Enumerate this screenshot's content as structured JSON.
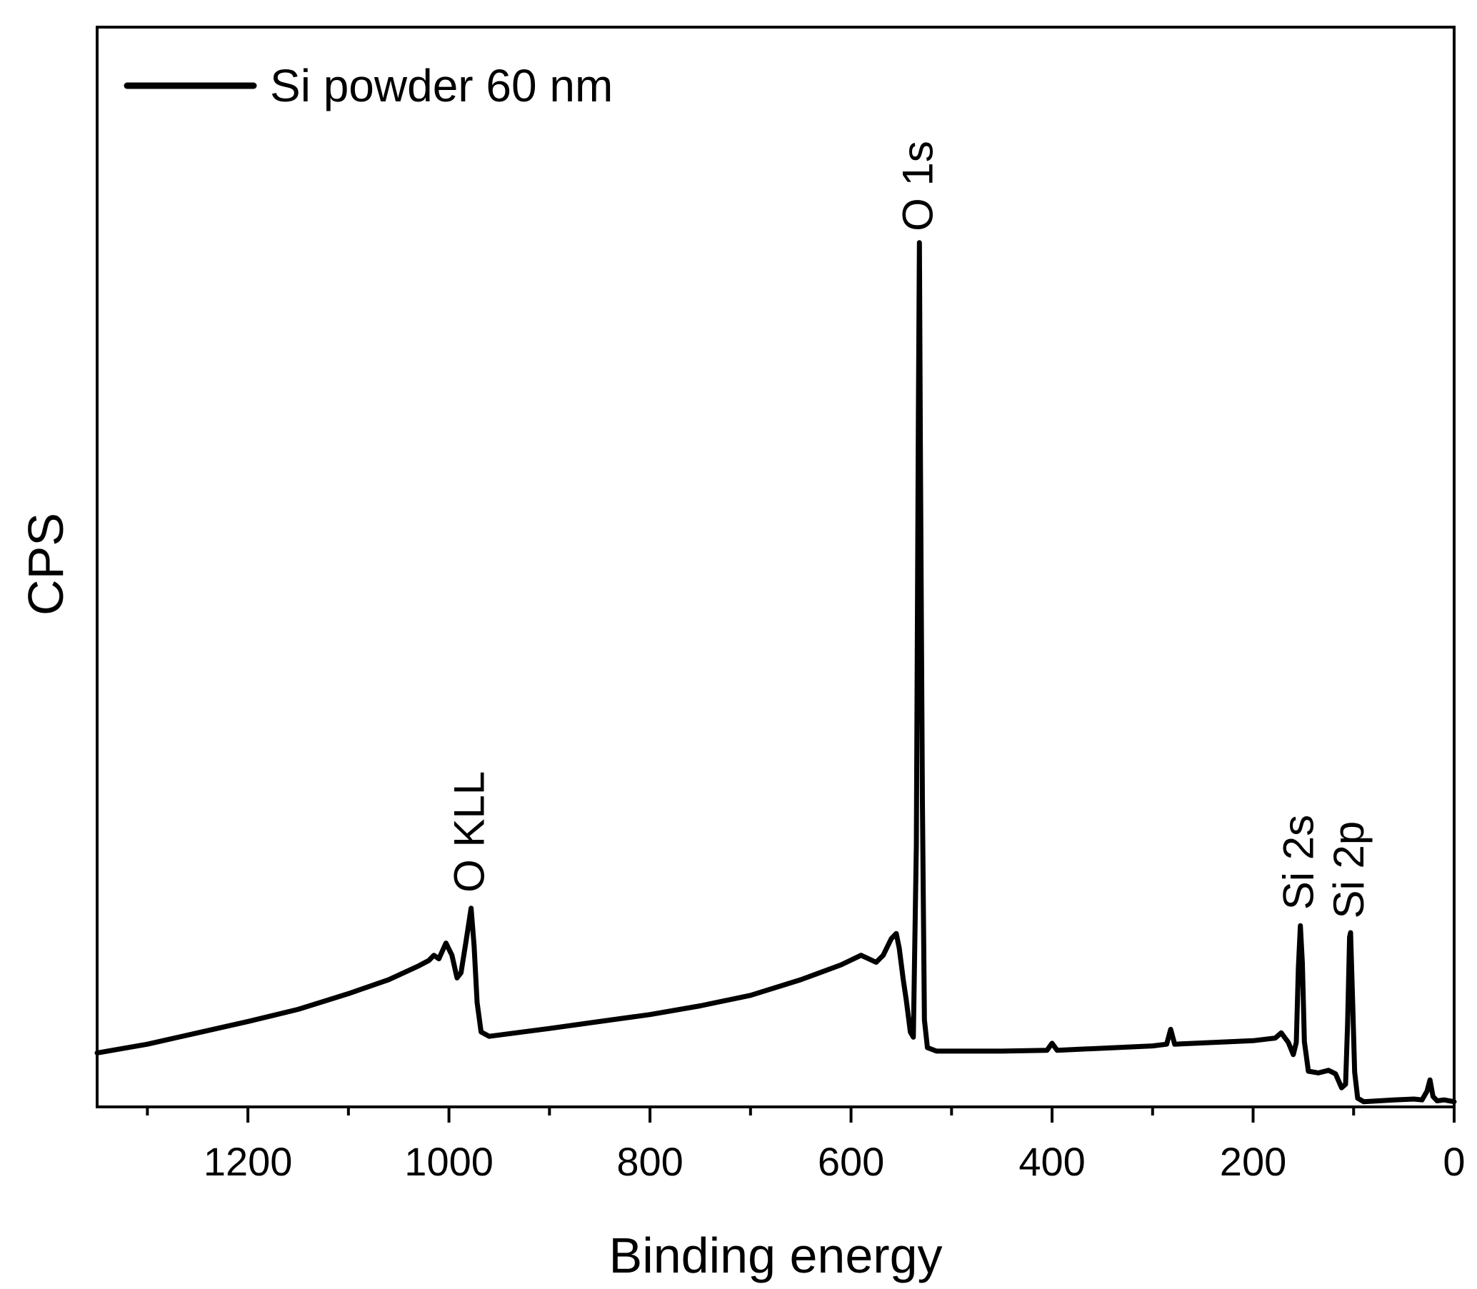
{
  "chart_data": {
    "type": "line",
    "title": "",
    "xlabel": "Binding energy",
    "ylabel": "CPS",
    "x_reversed": true,
    "xlim": [
      1350,
      0
    ],
    "ylim": [
      0,
      100
    ],
    "y_ticks_shown": false,
    "grid": false,
    "legend_position": "top-left",
    "x_ticks": [
      1200,
      1000,
      800,
      600,
      400,
      200,
      0
    ],
    "x_tick_labels": [
      "1200",
      "1000",
      "800",
      "600",
      "400",
      "200",
      "0"
    ],
    "x_minor_ticks": [
      1300,
      1100,
      900,
      700,
      500,
      300,
      100
    ],
    "series": [
      {
        "name": "Si powder 60 nm",
        "color": "#000000",
        "points": [
          [
            1350,
            6.2
          ],
          [
            1300,
            7.2
          ],
          [
            1250,
            8.5
          ],
          [
            1200,
            9.8
          ],
          [
            1150,
            11.2
          ],
          [
            1100,
            13.0
          ],
          [
            1060,
            14.6
          ],
          [
            1030,
            16.2
          ],
          [
            1020,
            16.8
          ],
          [
            1015,
            17.4
          ],
          [
            1010,
            17.0
          ],
          [
            1003,
            18.8
          ],
          [
            997,
            17.4
          ],
          [
            992,
            14.8
          ],
          [
            988,
            15.4
          ],
          [
            983,
            19.0
          ],
          [
            978,
            22.8
          ],
          [
            975,
            18.5
          ],
          [
            972,
            12.0
          ],
          [
            968,
            8.6
          ],
          [
            960,
            8.1
          ],
          [
            900,
            9.0
          ],
          [
            850,
            9.8
          ],
          [
            800,
            10.6
          ],
          [
            750,
            11.6
          ],
          [
            700,
            12.8
          ],
          [
            650,
            14.6
          ],
          [
            610,
            16.3
          ],
          [
            590,
            17.4
          ],
          [
            575,
            16.6
          ],
          [
            568,
            17.4
          ],
          [
            560,
            19.3
          ],
          [
            555,
            19.9
          ],
          [
            552,
            18.2
          ],
          [
            548,
            14.6
          ],
          [
            545,
            12.2
          ],
          [
            541,
            8.6
          ],
          [
            538,
            8.0
          ],
          [
            535,
            30.0
          ],
          [
            533,
            80.0
          ],
          [
            532,
            99.2
          ],
          [
            531,
            75.0
          ],
          [
            529,
            35.0
          ],
          [
            527,
            10.0
          ],
          [
            524,
            6.8
          ],
          [
            515,
            6.4
          ],
          [
            450,
            6.4
          ],
          [
            405,
            6.5
          ],
          [
            400,
            7.3
          ],
          [
            395,
            6.5
          ],
          [
            300,
            7.0
          ],
          [
            286,
            7.2
          ],
          [
            282,
            8.9
          ],
          [
            278,
            7.2
          ],
          [
            200,
            7.6
          ],
          [
            178,
            7.9
          ],
          [
            172,
            8.5
          ],
          [
            165,
            7.4
          ],
          [
            160,
            6.0
          ],
          [
            157,
            7.4
          ],
          [
            155,
            16.0
          ],
          [
            153,
            20.8
          ],
          [
            151,
            16.5
          ],
          [
            149,
            7.5
          ],
          [
            145,
            4.1
          ],
          [
            135,
            3.9
          ],
          [
            125,
            4.2
          ],
          [
            118,
            3.8
          ],
          [
            112,
            2.2
          ],
          [
            108,
            2.6
          ],
          [
            106,
            9.5
          ],
          [
            104,
            19.5
          ],
          [
            103,
            20.0
          ],
          [
            101,
            12.0
          ],
          [
            99,
            4.0
          ],
          [
            96,
            1.0
          ],
          [
            90,
            0.6
          ],
          [
            60,
            0.8
          ],
          [
            40,
            0.9
          ],
          [
            32,
            0.8
          ],
          [
            27,
            1.8
          ],
          [
            24,
            3.1
          ],
          [
            21,
            1.2
          ],
          [
            17,
            0.7
          ],
          [
            10,
            0.8
          ],
          [
            0,
            0.6
          ]
        ]
      }
    ],
    "annotations": [
      {
        "text": "O 1s",
        "x": 532,
        "y": 100.5
      },
      {
        "text": "O KLL",
        "x": 978,
        "y": 24.6
      },
      {
        "text": "Si 2s",
        "x": 153,
        "y": 22.6
      },
      {
        "text": "Si 2p",
        "x": 103,
        "y": 21.6
      }
    ]
  }
}
